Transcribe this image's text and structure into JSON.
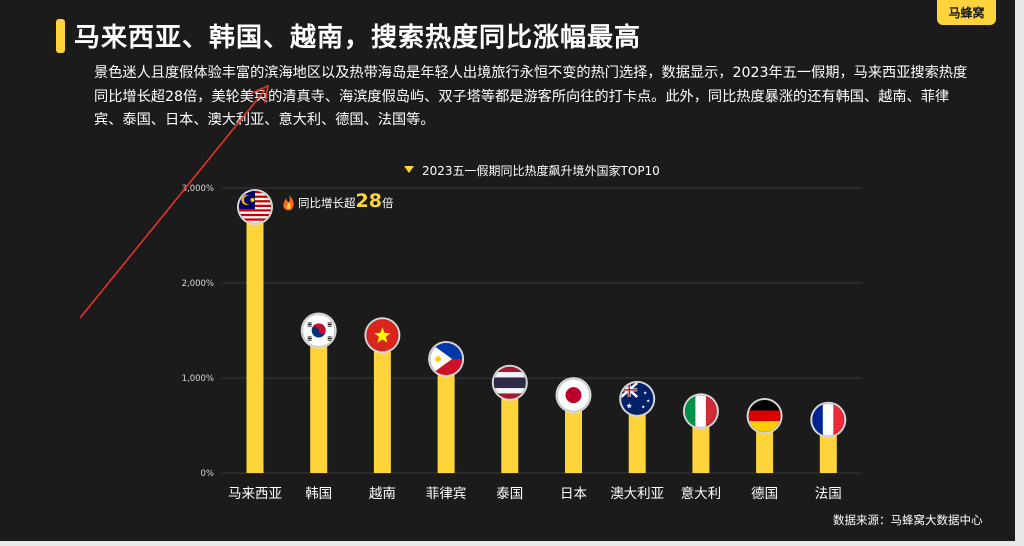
{
  "title": "马来西亚、韩国、越南，搜索热度同比涨幅最高",
  "logo_text": "马蜂窝",
  "paragraph": "景色迷人且度假体验丰富的滨海地区以及热带海岛是年轻人出境旅行永恒不变的热门选择，数据显示，2023年五一假期，马来西亚搜索热度同比增长超28倍，美轮美奂的清真寺、海滨度假岛屿、双子塔等都是游客所向往的打卡点。此外，同比热度暴涨的还有韩国、越南、菲律宾、泰国、日本、澳大利亚、意大利、德国、法国等。",
  "source": "数据来源：马蜂窝大数据中心",
  "colors": {
    "background": "#1b1b1b",
    "accent": "#ffd43a",
    "bar": "#ffd43a",
    "annotation_arrow": "#e6332a"
  },
  "chart_data": {
    "type": "bar",
    "title": "2023五一假期同比热度飙升境外国家TOP10",
    "xlabel": "",
    "ylabel": "",
    "categories": [
      "马来西亚",
      "韩国",
      "越南",
      "菲律宾",
      "泰国",
      "日本",
      "澳大利亚",
      "意大利",
      "德国",
      "法国"
    ],
    "values": [
      2800,
      1500,
      1450,
      1200,
      950,
      820,
      780,
      650,
      600,
      560
    ],
    "value_unit": "%",
    "ylim": [
      0,
      3000
    ],
    "yticks": [
      0,
      1000,
      2000,
      3000
    ],
    "ytick_labels": [
      "0%",
      "1,000%",
      "2,000%",
      "3,000%"
    ],
    "grid": true,
    "legend_position": "top",
    "flag_icons": [
      "malaysia-flag-icon",
      "south-korea-flag-icon",
      "vietnam-flag-icon",
      "philippines-flag-icon",
      "thailand-flag-icon",
      "japan-flag-icon",
      "australia-flag-icon",
      "italy-flag-icon",
      "germany-flag-icon",
      "france-flag-icon"
    ],
    "annotation": {
      "icon": "fire-icon",
      "prefix": "同比增长超",
      "number": "28",
      "suffix": "倍"
    }
  }
}
